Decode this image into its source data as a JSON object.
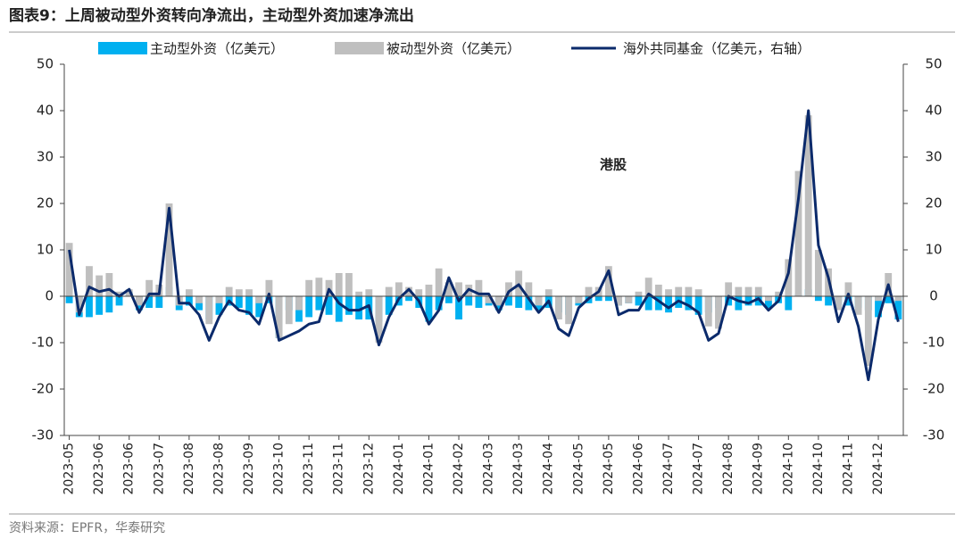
{
  "chart_data": {
    "type": "bar-line",
    "title": "图表9：上周被动型外资转向净流出，主动型外资加速净流出",
    "annotation": "港股",
    "source": "资料来源：EPFR，华泰研究",
    "categories": [
      "2023-05",
      null,
      null,
      "2023-06",
      null,
      null,
      "2023-06",
      null,
      null,
      "2023-07",
      null,
      null,
      "2023-08",
      null,
      null,
      "2023-08",
      null,
      null,
      "2023-09",
      null,
      null,
      "2023-10",
      null,
      null,
      "2023-11",
      null,
      null,
      "2023-11",
      null,
      null,
      "2023-12",
      null,
      null,
      "2024-01",
      null,
      null,
      "2024-01",
      null,
      null,
      "2024-02",
      null,
      null,
      "2024-03",
      null,
      null,
      "2024-03",
      null,
      null,
      "2024-04",
      null,
      null,
      "2024-05",
      null,
      null,
      "2024-05",
      null,
      null,
      "2024-06",
      null,
      null,
      "2024-07",
      null,
      null,
      "2024-07",
      null,
      null,
      "2024-08",
      null,
      null,
      "2024-09",
      null,
      null,
      "2024-10",
      null,
      null,
      "2024-10",
      null,
      null,
      "2024-11",
      null,
      null,
      "2024-12",
      null,
      null
    ],
    "series": [
      {
        "name": "主动型外资（亿美元）",
        "kind": "bar",
        "color": "#00b0f0",
        "values": [
          -1.5,
          -4.5,
          -4.5,
          -4,
          -3.5,
          -2,
          1,
          -3,
          -2.5,
          -2.5,
          2,
          -3,
          -2,
          -3,
          -5,
          -4,
          -2,
          -2.5,
          -4,
          -4.5,
          -1.5,
          -9,
          -3,
          -5.5,
          -4.5,
          -3,
          -4,
          -5.5,
          -4,
          -5,
          -5,
          -5.5,
          -4,
          -2,
          -1,
          -2.5,
          -5.5,
          -3,
          -1.5,
          -5,
          -2,
          -2.5,
          -2,
          -3,
          -2,
          -2.5,
          -3,
          -3,
          -2.5,
          -3.5,
          -4,
          -2,
          -1.5,
          -1,
          -1,
          -2,
          -1.5,
          -2,
          -3,
          -3,
          -3.5,
          -2.5,
          -3,
          -4,
          -3.5,
          -2.5,
          -2,
          -3,
          -2,
          -2,
          -2.5,
          -1.5,
          -3,
          0.5,
          1.5,
          -1,
          -2,
          -2,
          -2,
          -2.5,
          -3,
          -4.5,
          -1.5,
          -5
        ]
      },
      {
        "name": "被动型外资（亿美元）",
        "kind": "bar",
        "color": "#bfbfbf",
        "values": [
          11.5,
          -3.5,
          6.5,
          4.5,
          5,
          1,
          1.5,
          -2,
          3.5,
          2.5,
          20,
          -2,
          1.5,
          -1.5,
          -6,
          -1.5,
          2,
          1.5,
          1.5,
          -1.5,
          3.5,
          -9,
          -6,
          -3,
          3.5,
          4,
          3.5,
          5,
          5,
          1,
          1.5,
          -10,
          2,
          3,
          2,
          1.5,
          2.5,
          6,
          3,
          3,
          2.5,
          3.5,
          -1.5,
          -2,
          3,
          5.5,
          3,
          -2,
          1.5,
          -5,
          -6,
          -1.5,
          2,
          2,
          6.5,
          -2,
          -1.5,
          1,
          4,
          2.5,
          1.5,
          2,
          2,
          1.5,
          -6.5,
          -7,
          3,
          2,
          2,
          2,
          -1,
          1,
          8,
          27,
          39,
          10,
          6,
          -3,
          3,
          -4,
          -15,
          -1,
          5,
          -1
        ]
      },
      {
        "name": "海外共同基金（亿美元，右轴）",
        "kind": "line",
        "axis": "y2",
        "color": "#0b2a6b",
        "values": [
          10,
          -4,
          2,
          1,
          1.5,
          0,
          1.5,
          -3.5,
          0.5,
          0.5,
          19,
          -1.5,
          -1.5,
          -4,
          -9.5,
          -4.5,
          -1,
          -3,
          -3.5,
          -6,
          0.5,
          -9.5,
          -8.5,
          -7.5,
          -6,
          -5.5,
          1.5,
          -1.5,
          -3,
          -3,
          -2,
          -10.5,
          -4.5,
          -0.5,
          1.5,
          -1,
          -6,
          -3,
          4,
          -1,
          1.5,
          0.5,
          0.5,
          -3.5,
          1,
          2.5,
          -0.5,
          -3.5,
          -1,
          -7,
          -8.5,
          -2.5,
          -0.5,
          1,
          5.5,
          -4,
          -3,
          -3,
          0.5,
          -1,
          -2.5,
          -1,
          -2,
          -3.5,
          -9.5,
          -8,
          0,
          -1,
          -1.5,
          -0.5,
          -3,
          -1,
          5,
          21,
          40,
          11,
          4,
          -5.5,
          0.5,
          -6.5,
          -18,
          -5,
          2.5,
          -5.5
        ]
      }
    ],
    "ylim": [
      -30,
      50
    ],
    "yticks": [
      -30,
      -20,
      -10,
      0,
      10,
      20,
      30,
      40,
      50
    ],
    "y2lim": [
      -30,
      50
    ],
    "y2ticks": [
      -30,
      -20,
      -10,
      0,
      10,
      20,
      30,
      40,
      50
    ]
  }
}
